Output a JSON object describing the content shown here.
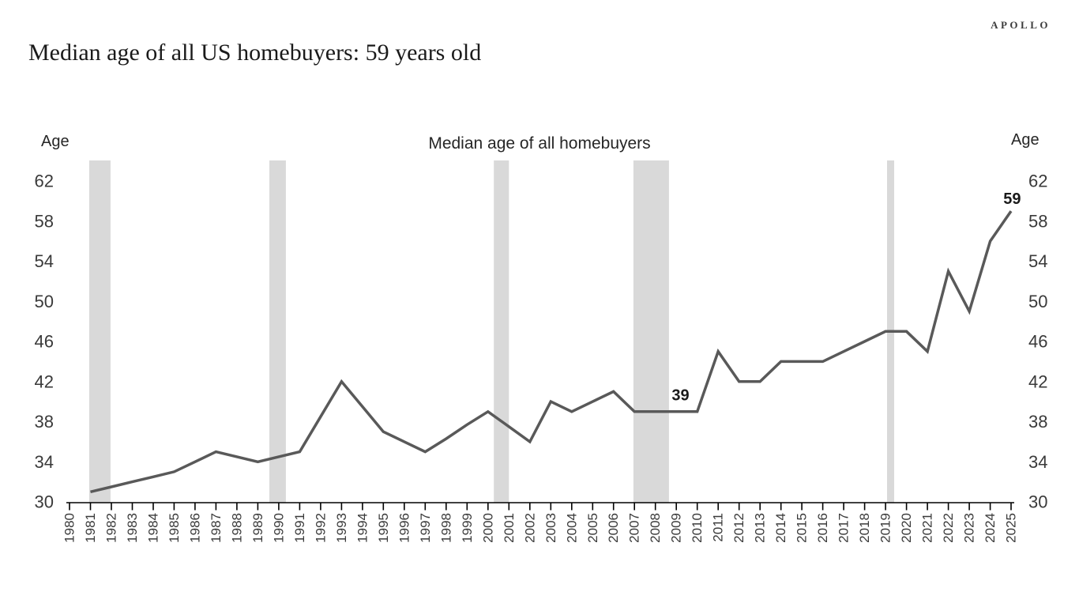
{
  "brand": {
    "logo": "APOLLO"
  },
  "header": {
    "title": "Median age of all US homebuyers: 59 years old"
  },
  "chart_data": {
    "type": "line",
    "title": "Median age of all homebuyers",
    "ylabel_left": "Age",
    "ylabel_right": "Age",
    "line_color": "#595959",
    "band_color": "#d9d9d9",
    "axis_color": "#000000",
    "tick_text_color": "#3a3a3a",
    "grid": false,
    "xlim": [
      1980,
      2025
    ],
    "ylim": [
      30,
      64
    ],
    "yticks": [
      30,
      34,
      38,
      42,
      46,
      50,
      54,
      58,
      62
    ],
    "xticks": [
      1980,
      1981,
      1982,
      1983,
      1984,
      1985,
      1986,
      1987,
      1988,
      1989,
      1990,
      1991,
      1992,
      1993,
      1994,
      1995,
      1996,
      1997,
      1998,
      1999,
      2000,
      2001,
      2002,
      2003,
      2004,
      2005,
      2006,
      2007,
      2008,
      2009,
      2010,
      2011,
      2012,
      2013,
      2014,
      2015,
      2016,
      2017,
      2018,
      2019,
      2020,
      2021,
      2022,
      2023,
      2024,
      2025
    ],
    "years": [
      1981,
      1982,
      1983,
      1984,
      1985,
      1986,
      1987,
      1988,
      1989,
      1990,
      1991,
      1992,
      1993,
      1994,
      1995,
      1996,
      1997,
      1998,
      1999,
      2000,
      2001,
      2002,
      2003,
      2004,
      2005,
      2006,
      2007,
      2008,
      2009,
      2010,
      2011,
      2012,
      2013,
      2014,
      2015,
      2016,
      2017,
      2018,
      2019,
      2020,
      2021,
      2022,
      2023,
      2024,
      2025
    ],
    "values": [
      31,
      31.5,
      32,
      32.5,
      33,
      34,
      35,
      34.5,
      34,
      34.5,
      35,
      38.5,
      42,
      39.5,
      37,
      36,
      35,
      36.3,
      37.7,
      39,
      37.5,
      36,
      40,
      39,
      40,
      41,
      39,
      39,
      39,
      39,
      45,
      42,
      42,
      44,
      44,
      44,
      45,
      46,
      47,
      47,
      45,
      53,
      49,
      56,
      59
    ],
    "recession_bands": [
      [
        1980.94,
        1981.96
      ],
      [
        1989.55,
        1990.34
      ],
      [
        2000.28,
        2001.0
      ],
      [
        2006.95,
        2008.65
      ],
      [
        2019.07,
        2019.41
      ]
    ],
    "annotations": [
      {
        "text": "39",
        "year": 2009.2,
        "age": 40.6
      },
      {
        "text": "59",
        "year": 2025.05,
        "age": 60.2
      }
    ]
  }
}
